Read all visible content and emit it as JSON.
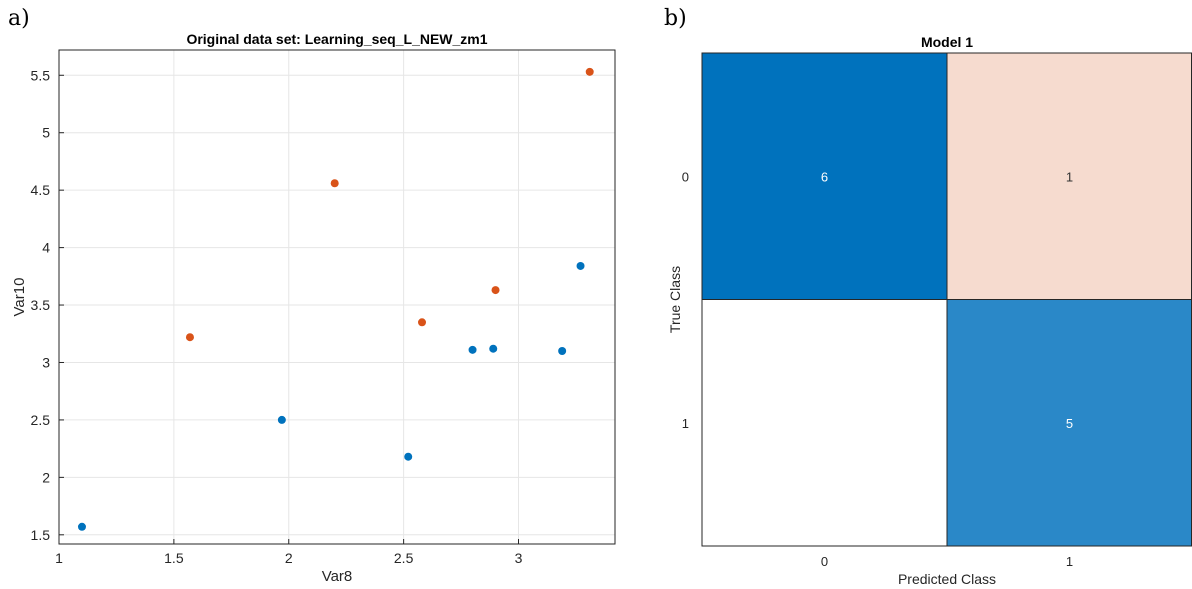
{
  "panels": {
    "a_label": "a)",
    "b_label": "b)"
  },
  "chart_data": [
    {
      "type": "scatter",
      "title": "Original data set: Learning_seq_L_NEW_zm1",
      "xlabel": "Var8",
      "ylabel": "Var10",
      "xlim": [
        1,
        3.42
      ],
      "ylim": [
        1.42,
        5.72
      ],
      "xticks": [
        "1",
        "1.5",
        "2",
        "2.5",
        "3"
      ],
      "yticks": [
        "1.5",
        "2",
        "2.5",
        "3",
        "3.5",
        "4",
        "4.5",
        "5",
        "5.5"
      ],
      "grid": true,
      "series": [
        {
          "color": "#0072BD",
          "points": [
            [
              1.1,
              1.57
            ],
            [
              1.97,
              2.5
            ],
            [
              2.52,
              2.18
            ],
            [
              2.8,
              3.11
            ],
            [
              2.89,
              3.12
            ],
            [
              3.19,
              3.1
            ],
            [
              3.27,
              3.84
            ]
          ]
        },
        {
          "color": "#D95319",
          "points": [
            [
              1.57,
              3.22
            ],
            [
              2.2,
              4.56
            ],
            [
              2.58,
              3.35
            ],
            [
              2.9,
              3.63
            ],
            [
              3.31,
              5.53
            ]
          ]
        }
      ]
    },
    {
      "type": "heatmap",
      "title": "Model 1",
      "xlabel": "Predicted Class",
      "ylabel": "True Class",
      "classes": [
        "0",
        "1"
      ],
      "matrix": [
        [
          6,
          1
        ],
        [
          0,
          5
        ]
      ],
      "cell_colors": [
        [
          "#0072BD",
          "#F6DBCF"
        ],
        [
          "#FFFFFF",
          "#2A88C8"
        ]
      ],
      "value_color": "#FFFFFF",
      "low_value_color": "#333333"
    }
  ]
}
